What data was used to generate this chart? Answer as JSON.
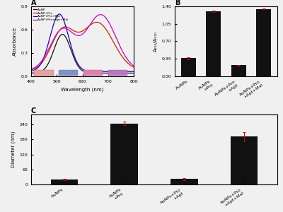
{
  "panel_A": {
    "title": "A",
    "xlabel": "Wavelength (nm)",
    "ylabel": "Absorbance",
    "xlim": [
      400,
      800
    ],
    "ylim": [
      0.0,
      0.9
    ],
    "yticks": [
      0.0,
      0.3,
      0.6,
      0.9
    ],
    "lines": [
      {
        "label": "AuNP",
        "color": "#111111"
      },
      {
        "label": "AuNP+Pro",
        "color": "#cc2200"
      },
      {
        "label": "AuNP+Pro+Apt",
        "color": "#2200bb"
      },
      {
        "label": "AuNP+Pro+Apt+Mal",
        "color": "#cc00cc"
      }
    ],
    "color_boxes": [
      "#e8a0a0",
      "#8090c8",
      "#e080b0",
      "#b878c0"
    ]
  },
  "panel_B": {
    "title": "B",
    "ylabel": "A₆₅₀/A₅₂₀",
    "categories": [
      "AuNPs",
      "AuNPs\n+Pro",
      "AuNPs+Pro\n+Apt",
      "AuNPs+Pro\n+Apt+Mal"
    ],
    "values": [
      0.36,
      1.3,
      0.22,
      1.35
    ],
    "errors": [
      0.025,
      0.012,
      0.008,
      0.012
    ],
    "ylim": [
      0,
      1.4
    ],
    "yticks": [
      0.0,
      0.35,
      0.7,
      1.05,
      1.4
    ],
    "bar_color": "#111111",
    "error_color": "#cc0000"
  },
  "panel_C": {
    "title": "C",
    "ylabel": "Diameter (nm)",
    "categories": [
      "AuNPs",
      "AuNPs\n+Pro",
      "AuNPs+Pro\n+Apt",
      "AuNPs+Pro\n+Apt+Mal"
    ],
    "values": [
      20,
      245,
      22,
      192
    ],
    "errors": [
      3,
      8,
      4,
      18
    ],
    "ylim": [
      0,
      280
    ],
    "yticks": [
      0,
      60,
      120,
      180,
      240
    ],
    "bar_color": "#111111",
    "error_color": "#cc0000"
  },
  "bg_color": "#f0f0f0"
}
